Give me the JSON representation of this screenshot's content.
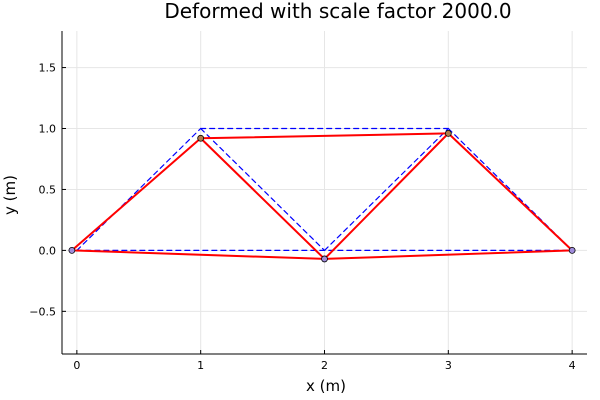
{
  "chart_data": {
    "type": "line",
    "title": "Deformed with scale factor 2000.0",
    "xlabel": "x (m)",
    "ylabel": "y (m)",
    "xlim": [
      -0.12,
      4.12
    ],
    "ylim": [
      -0.85,
      1.8
    ],
    "xticks": [
      0,
      1,
      2,
      3,
      4
    ],
    "xtick_labels": [
      "0",
      "1",
      "2",
      "3",
      "4"
    ],
    "yticks": [
      -0.5,
      0.0,
      0.5,
      1.0,
      1.5
    ],
    "ytick_labels": [
      "−0.5",
      "0.0",
      "0.5",
      "1.0",
      "1.5"
    ],
    "grid": true,
    "legend": "none",
    "series": [
      {
        "style": "dashed",
        "color": "#0000ff",
        "segments": [
          [
            [
              0,
              0
            ],
            [
              4,
              0
            ]
          ],
          [
            [
              0,
              0
            ],
            [
              1,
              1
            ]
          ],
          [
            [
              1,
              1
            ],
            [
              3,
              1
            ]
          ],
          [
            [
              1,
              1
            ],
            [
              2,
              0
            ]
          ],
          [
            [
              2,
              0
            ],
            [
              3,
              1
            ]
          ],
          [
            [
              3,
              1
            ],
            [
              4,
              0
            ]
          ]
        ]
      },
      {
        "style": "solid",
        "color": "#ff0000",
        "segments": [
          [
            [
              -0.04,
              0.0
            ],
            [
              2.0,
              -0.07
            ]
          ],
          [
            [
              2.0,
              -0.07
            ],
            [
              4.0,
              0.0
            ]
          ],
          [
            [
              -0.04,
              0.0
            ],
            [
              1.0,
              0.92
            ]
          ],
          [
            [
              1.0,
              0.92
            ],
            [
              3.0,
              0.96
            ]
          ],
          [
            [
              1.0,
              0.92
            ],
            [
              2.0,
              -0.07
            ]
          ],
          [
            [
              2.0,
              -0.07
            ],
            [
              3.0,
              0.96
            ]
          ],
          [
            [
              3.0,
              0.96
            ],
            [
              4.0,
              0.0
            ]
          ]
        ],
        "nodes": [
          [
            -0.04,
            0.0
          ],
          [
            1.0,
            0.92
          ],
          [
            2.0,
            -0.07
          ],
          [
            3.0,
            0.96
          ],
          [
            4.0,
            0.0
          ]
        ],
        "node_colors": [
          "#a08cdc",
          "#b07a4a",
          "#a08cdc",
          "#b07a4a",
          "#a08cdc"
        ]
      }
    ]
  }
}
